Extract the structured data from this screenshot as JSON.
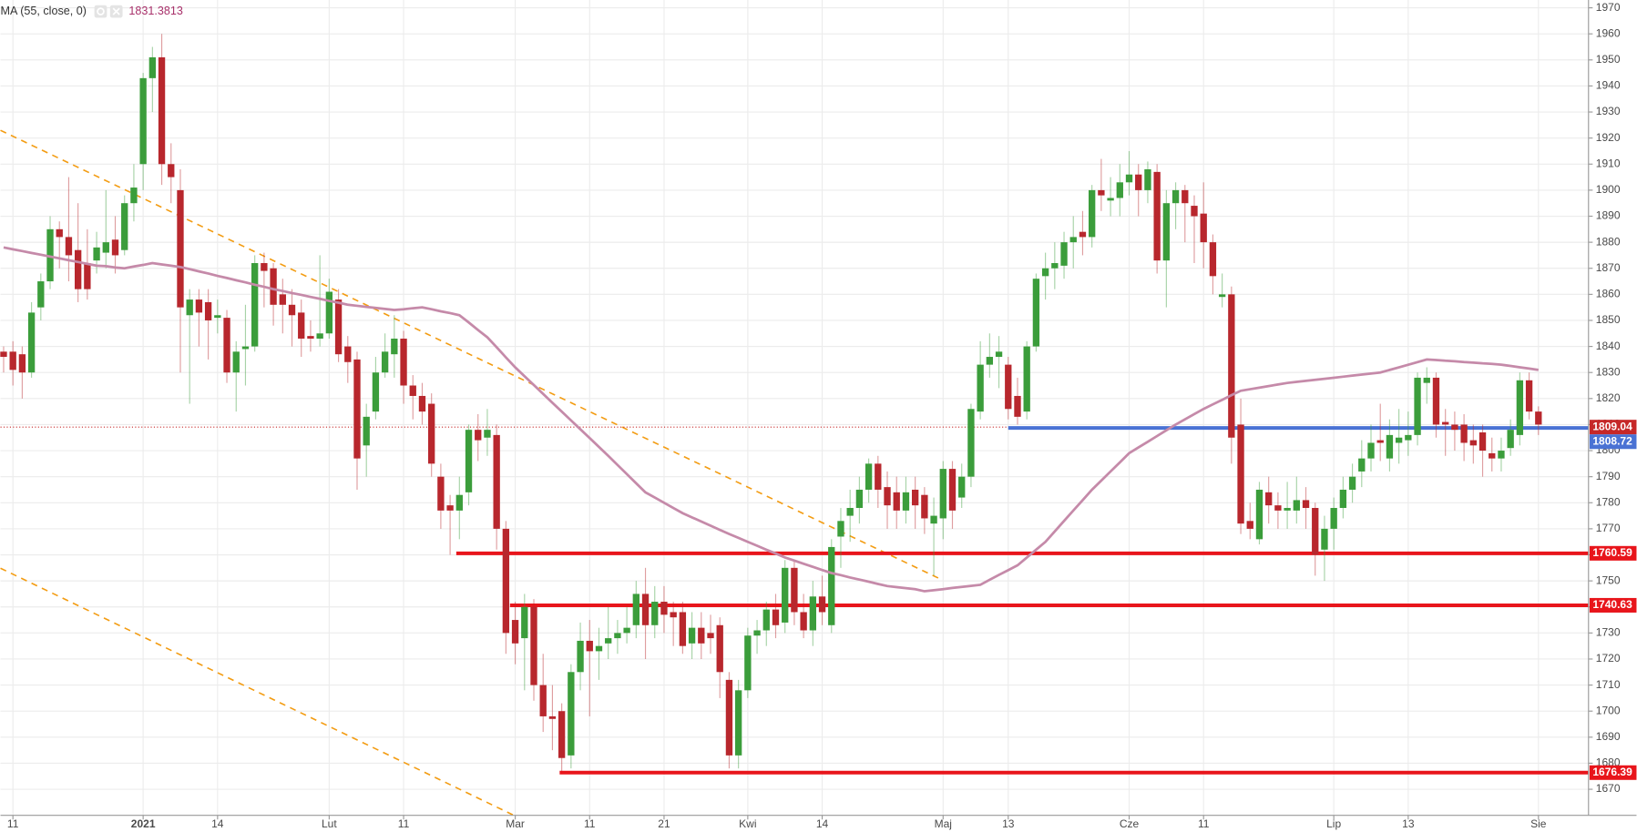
{
  "chart_data": {
    "type": "candlestick",
    "indicator": {
      "name": "MA (55, close, 0)",
      "last_value": 1831.3813,
      "color": "#c58aa9",
      "values": [
        1878,
        1877.3,
        1876.6,
        1875.9,
        1875.2,
        1874.5,
        1873.8,
        1873.1,
        1872.4,
        1871.7,
        1871,
        1870.8,
        1870.3,
        1870,
        1870.7,
        1871.3,
        1872,
        1871.5,
        1871,
        1870.5,
        1869.7,
        1868.8,
        1868,
        1867.1,
        1866.3,
        1865.4,
        1864.6,
        1863.7,
        1862.9,
        1862,
        1861.3,
        1860.5,
        1859.8,
        1859,
        1858.3,
        1857.5,
        1856.8,
        1856,
        1855.6,
        1855.2,
        1854.8,
        1854.4,
        1854,
        1854.3,
        1854.7,
        1855,
        1854.3,
        1853.5,
        1852.8,
        1852,
        1849.2,
        1846.3,
        1843.5,
        1839.7,
        1835.8,
        1832,
        1828.6,
        1825.2,
        1821.8,
        1818.4,
        1815,
        1811.6,
        1808.2,
        1804.8,
        1801.4,
        1798,
        1794.5,
        1791,
        1787.5,
        1784,
        1782,
        1780,
        1778,
        1776,
        1774.4,
        1772.8,
        1771.2,
        1769.6,
        1768,
        1766.5,
        1765,
        1763.5,
        1762,
        1760.5,
        1759,
        1757.8,
        1756.6,
        1755.4,
        1754.2,
        1753,
        1752.2,
        1751.3,
        1750.5,
        1749.7,
        1748.8,
        1748,
        1747.6,
        1747.2,
        1746.8,
        1746,
        1746.4,
        1746.8,
        1747.3,
        1747.7,
        1748.1,
        1748.5,
        1750.4,
        1752.3,
        1754.1,
        1756,
        1759,
        1762,
        1765,
        1769,
        1773,
        1777,
        1781,
        1785,
        1788.5,
        1792,
        1795.5,
        1799,
        1801.2,
        1803.4,
        1805.6,
        1807.8,
        1810,
        1812,
        1814,
        1816,
        1817.8,
        1819.5,
        1821.3,
        1823,
        1823.6,
        1824.2,
        1824.8,
        1825.4,
        1826,
        1826.4,
        1826.8,
        1827.2,
        1827.6,
        1828,
        1828.4,
        1828.8,
        1829.2,
        1829.6,
        1830,
        1831,
        1832,
        1833,
        1834,
        1835,
        1834.8,
        1834.5,
        1834.3,
        1834,
        1833.8,
        1833.5,
        1833.3,
        1833,
        1832.5,
        1832,
        1831.5,
        1831
      ]
    },
    "categories": [
      null,
      "11",
      null,
      null,
      null,
      null,
      null,
      null,
      null,
      null,
      null,
      null,
      null,
      null,
      null,
      "2021",
      null,
      null,
      null,
      null,
      null,
      null,
      null,
      "14",
      null,
      null,
      null,
      null,
      null,
      null,
      null,
      null,
      null,
      null,
      null,
      "Lut",
      null,
      null,
      null,
      null,
      null,
      null,
      null,
      "11",
      null,
      null,
      null,
      null,
      null,
      null,
      null,
      null,
      null,
      null,
      null,
      "Mar",
      null,
      null,
      null,
      null,
      null,
      null,
      null,
      "11",
      null,
      null,
      null,
      null,
      null,
      null,
      null,
      "21",
      null,
      null,
      null,
      null,
      null,
      null,
      null,
      null,
      "Kwi",
      null,
      null,
      null,
      null,
      null,
      null,
      null,
      "14",
      null,
      null,
      null,
      null,
      null,
      null,
      null,
      null,
      null,
      null,
      null,
      null,
      "Maj",
      null,
      null,
      null,
      null,
      null,
      null,
      "13",
      null,
      null,
      null,
      null,
      null,
      null,
      null,
      null,
      null,
      null,
      null,
      null,
      "Cze",
      null,
      null,
      null,
      null,
      null,
      null,
      null,
      "11",
      null,
      null,
      null,
      null,
      null,
      null,
      null,
      null,
      null,
      null,
      null,
      null,
      null,
      "Lip",
      null,
      null,
      null,
      null,
      null,
      null,
      null,
      "13",
      null,
      null,
      null,
      null,
      null,
      null,
      null,
      null,
      null,
      null,
      null,
      null,
      null,
      "Sie"
    ],
    "open": [
      1838,
      1838,
      1837,
      1830,
      1855,
      1865,
      1885,
      1882,
      1877,
      1872,
      1873,
      1876,
      1881,
      1877,
      1895,
      1910,
      1943,
      1951,
      1910,
      1900,
      1852,
      1858,
      1857,
      1851,
      1851,
      1830,
      1839,
      1840,
      1872,
      1870,
      1860,
      1856,
      1853,
      1844,
      1843,
      1845,
      1858,
      1840,
      1835,
      1802,
      1815,
      1830,
      1837,
      1843,
      1825,
      1821,
      1818,
      1790,
      1779,
      1777,
      1784,
      1808,
      1805,
      1806,
      1770,
      1735,
      1728,
      1740,
      1710,
      1698,
      1700,
      1683,
      1715,
      1727,
      1723,
      1726,
      1728,
      1730,
      1733,
      1745,
      1733,
      1742,
      1738,
      1738,
      1726,
      1732,
      1730,
      1733,
      1712,
      1683,
      1708,
      1729,
      1731,
      1739,
      1734,
      1755,
      1738,
      1731,
      1744,
      1733,
      1767,
      1775,
      1778,
      1785,
      1795,
      1786,
      1784,
      1777,
      1785,
      1783,
      1772,
      1774,
      1793,
      1782,
      1790,
      1815,
      1833,
      1836,
      1833,
      1821,
      1815,
      1840,
      1867,
      1870,
      1871,
      1880,
      1884,
      1882,
      1900,
      1896,
      1897,
      1903,
      1906,
      1900,
      1907,
      1873,
      1895,
      1900,
      1894,
      1891,
      1880,
      1859,
      1860,
      1810,
      1773,
      1766,
      1784,
      1779,
      1777,
      1777,
      1781,
      1778,
      1762,
      1770,
      1778,
      1785,
      1792,
      1797,
      1804,
      1797,
      1803,
      1804,
      1806,
      1826,
      1828,
      1811,
      1810,
      1810,
      1804,
      1807,
      1799,
      1797,
      1801,
      1806,
      1827,
      1815
    ],
    "high": [
      1840,
      1842,
      1840,
      1857,
      1868,
      1890,
      1888,
      1905,
      1895,
      1885,
      1884,
      1900,
      1890,
      1898,
      1910,
      1945,
      1955,
      1960,
      1918,
      1908,
      1862,
      1862,
      1862,
      1858,
      1854,
      1842,
      1856,
      1875,
      1876,
      1872,
      1866,
      1862,
      1858,
      1850,
      1875,
      1866,
      1862,
      1844,
      1838,
      1818,
      1836,
      1845,
      1852,
      1846,
      1829,
      1826,
      1822,
      1795,
      1783,
      1790,
      1810,
      1814,
      1816,
      1810,
      1773,
      1742,
      1745,
      1743,
      1722,
      1710,
      1703,
      1718,
      1734,
      1735,
      1732,
      1740,
      1735,
      1740,
      1750,
      1755,
      1748,
      1748,
      1742,
      1742,
      1738,
      1738,
      1737,
      1736,
      1715,
      1712,
      1732,
      1735,
      1742,
      1745,
      1758,
      1758,
      1745,
      1750,
      1752,
      1766,
      1778,
      1785,
      1790,
      1797,
      1798,
      1792,
      1790,
      1790,
      1790,
      1786,
      1782,
      1796,
      1796,
      1795,
      1818,
      1842,
      1845,
      1844,
      1836,
      1828,
      1842,
      1868,
      1876,
      1880,
      1884,
      1890,
      1892,
      1902,
      1912,
      1905,
      1910,
      1915,
      1910,
      1911,
      1910,
      1900,
      1903,
      1902,
      1898,
      1903,
      1883,
      1868,
      1863,
      1820,
      1780,
      1788,
      1790,
      1784,
      1788,
      1790,
      1786,
      1780,
      1775,
      1782,
      1790,
      1795,
      1804,
      1810,
      1818,
      1812,
      1816,
      1815,
      1830,
      1832,
      1830,
      1816,
      1815,
      1814,
      1810,
      1810,
      1805,
      1805,
      1812,
      1830,
      1830,
      1817
    ],
    "low": [
      1830,
      1825,
      1820,
      1828,
      1850,
      1862,
      1870,
      1865,
      1857,
      1858,
      1868,
      1870,
      1868,
      1875,
      1888,
      1900,
      1930,
      1902,
      1895,
      1830,
      1818,
      1840,
      1835,
      1845,
      1826,
      1815,
      1825,
      1838,
      1855,
      1848,
      1845,
      1840,
      1836,
      1838,
      1840,
      1843,
      1834,
      1826,
      1785,
      1790,
      1812,
      1828,
      1828,
      1818,
      1812,
      1810,
      1790,
      1770,
      1760,
      1766,
      1779,
      1796,
      1798,
      1762,
      1722,
      1718,
      1708,
      1704,
      1692,
      1685,
      1677,
      1678,
      1708,
      1698,
      1712,
      1720,
      1722,
      1726,
      1728,
      1720,
      1728,
      1730,
      1725,
      1722,
      1720,
      1720,
      1722,
      1705,
      1678,
      1678,
      1705,
      1722,
      1725,
      1728,
      1730,
      1733,
      1728,
      1725,
      1733,
      1730,
      1755,
      1765,
      1772,
      1780,
      1778,
      1770,
      1770,
      1772,
      1770,
      1768,
      1752,
      1766,
      1770,
      1778,
      1786,
      1812,
      1828,
      1824,
      1812,
      1810,
      1812,
      1838,
      1858,
      1862,
      1866,
      1870,
      1875,
      1878,
      1892,
      1890,
      1890,
      1898,
      1890,
      1895,
      1868,
      1855,
      1885,
      1880,
      1872,
      1870,
      1860,
      1855,
      1795,
      1768,
      1766,
      1764,
      1772,
      1770,
      1770,
      1772,
      1770,
      1752,
      1750,
      1762,
      1774,
      1780,
      1786,
      1792,
      1796,
      1792,
      1795,
      1798,
      1802,
      1818,
      1805,
      1798,
      1800,
      1796,
      1795,
      1790,
      1792,
      1792,
      1798,
      1802,
      1812,
      1806
    ],
    "close": [
      1836,
      1831,
      1830,
      1853,
      1865,
      1885,
      1882,
      1875,
      1862,
      1862,
      1878,
      1880,
      1875,
      1895,
      1901,
      1943,
      1951,
      1910,
      1905,
      1855,
      1858,
      1853,
      1850,
      1852,
      1830,
      1838,
      1840,
      1872,
      1869,
      1856,
      1856,
      1852,
      1843,
      1843,
      1845,
      1861,
      1837,
      1834,
      1797,
      1813,
      1830,
      1838,
      1843,
      1825,
      1821,
      1815,
      1795,
      1777,
      1777,
      1783,
      1808,
      1804,
      1808,
      1770,
      1730,
      1726,
      1740,
      1710,
      1698,
      1697,
      1682,
      1715,
      1727,
      1723,
      1725,
      1728,
      1730,
      1732,
      1745,
      1733,
      1742,
      1737,
      1736,
      1725,
      1732,
      1726,
      1728,
      1715,
      1683,
      1708,
      1729,
      1731,
      1739,
      1733,
      1755,
      1738,
      1731,
      1744,
      1738,
      1763,
      1773,
      1778,
      1785,
      1795,
      1785,
      1779,
      1777,
      1784,
      1779,
      1774,
      1775,
      1793,
      1777,
      1790,
      1816,
      1833,
      1836,
      1838,
      1816,
      1813,
      1840,
      1866,
      1870,
      1872,
      1880,
      1882,
      1882,
      1900,
      1898,
      1897,
      1903,
      1906,
      1900,
      1908,
      1873,
      1895,
      1900,
      1895,
      1890,
      1880,
      1867,
      1860,
      1805,
      1772,
      1770,
      1785,
      1779,
      1777,
      1778,
      1781,
      1778,
      1760,
      1770,
      1778,
      1785,
      1790,
      1797,
      1803,
      1803,
      1806,
      1805,
      1806,
      1828,
      1828,
      1810,
      1810,
      1808,
      1803,
      1802,
      1800,
      1797,
      1800,
      1808,
      1827,
      1815,
      1810
    ],
    "up_color": "#3b9d3b",
    "down_color": "#b8272d",
    "levels": [
      {
        "value": 1809.04,
        "color": "#c62828",
        "style": "dotted"
      },
      {
        "value": 1808.72,
        "color": "#4a72d4",
        "style": "solid"
      },
      {
        "value": 1760.59,
        "color": "#e8151b",
        "style": "solid"
      },
      {
        "value": 1740.63,
        "color": "#e8151b",
        "style": "solid"
      },
      {
        "value": 1676.39,
        "color": "#e8151b",
        "style": "solid"
      }
    ],
    "ylim": [
      1660,
      1973
    ],
    "yticks": [
      1670,
      1680,
      1690,
      1700,
      1710,
      1720,
      1730,
      1740,
      1750,
      1760,
      1770,
      1780,
      1790,
      1800,
      1810,
      1820,
      1830,
      1840,
      1850,
      1860,
      1870,
      1880,
      1890,
      1900,
      1910,
      1920,
      1930,
      1940,
      1950,
      1960,
      1970
    ],
    "grid": true
  }
}
